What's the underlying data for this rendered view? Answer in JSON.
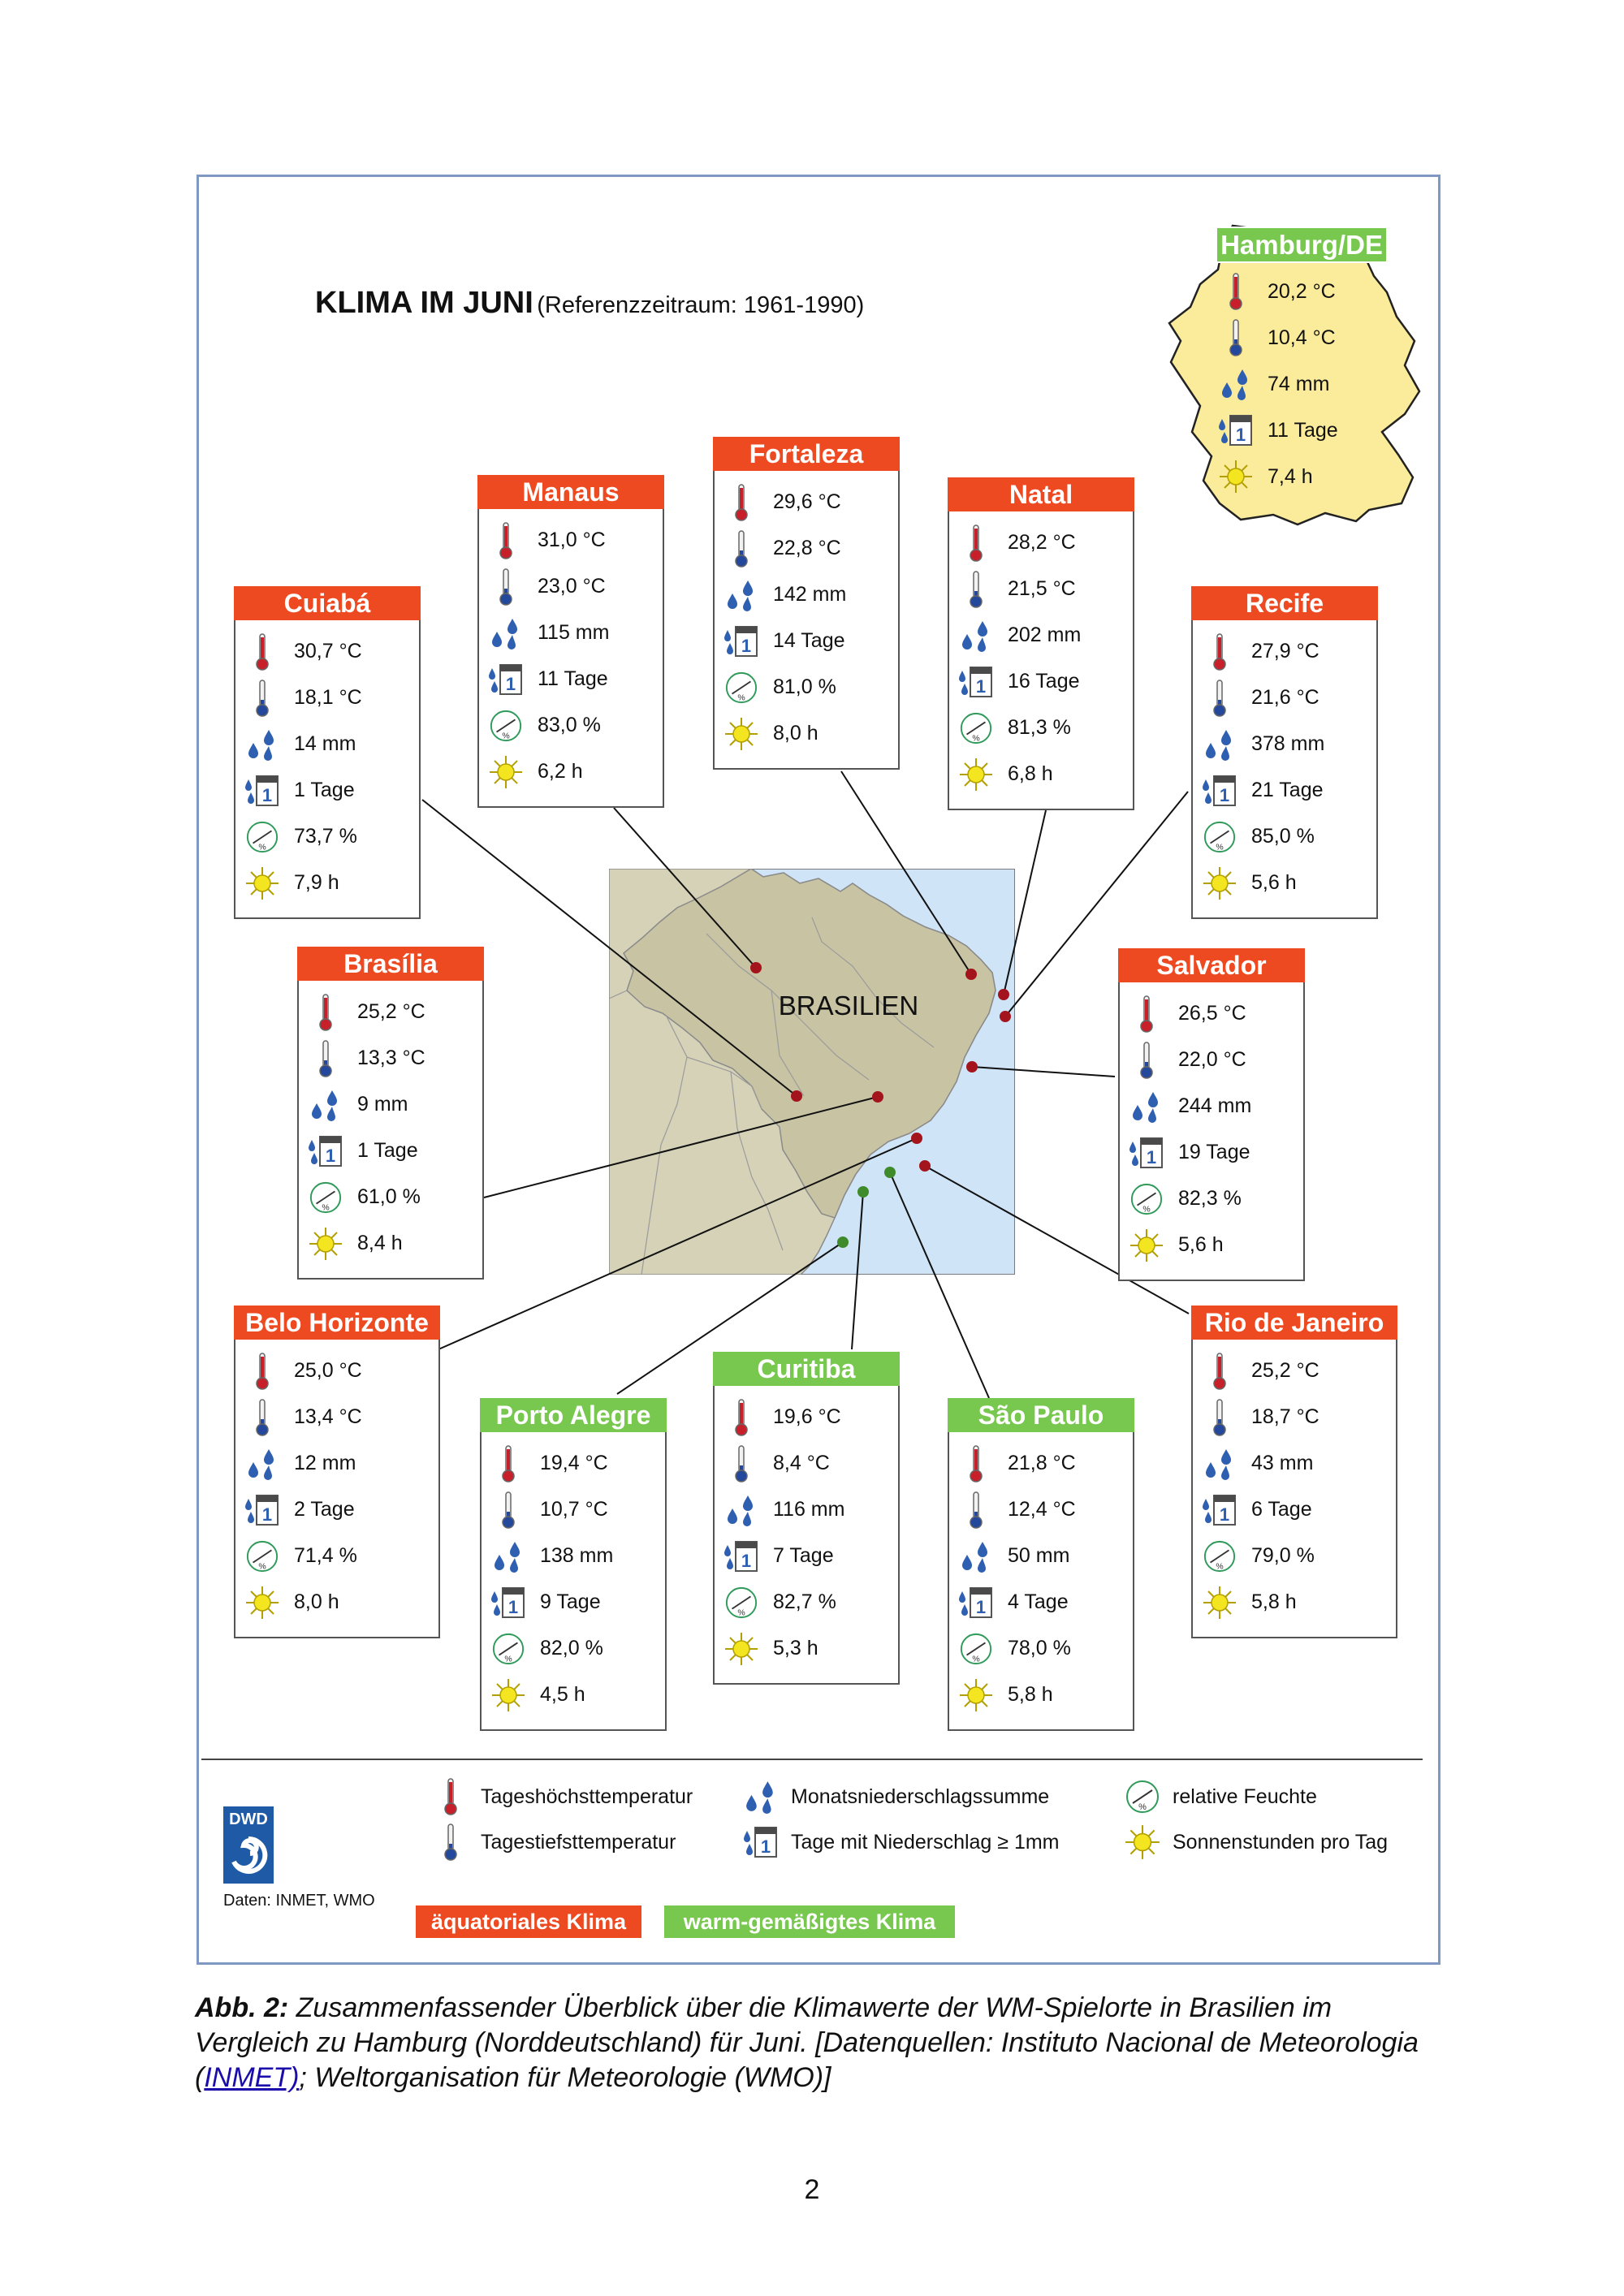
{
  "header": {
    "title": "KLIMA IM JUNI",
    "subtitle": "(Referenzzeitraum: 1961-1990)"
  },
  "colors": {
    "equatorial": "#ee4a22",
    "temperate": "#78c850",
    "germany_fill": "#fbec9b",
    "map_sea": "#cfe4f7",
    "map_land": "#d5d2b8",
    "station_red": "#a3141c",
    "station_green": "#3f8a2a"
  },
  "hamburg": {
    "title": "Hamburg/DE",
    "max_temp": "20,2 °C",
    "min_temp": "10,4 °C",
    "precip": "74 mm",
    "rain_days": "11 Tage",
    "sunshine": "7,4 h"
  },
  "cities": [
    {
      "name": "Manaus",
      "climate": "equatorial",
      "max_temp": "31,0 °C",
      "min_temp": "23,0 °C",
      "precip": "115 mm",
      "rain_days": "11 Tage",
      "humidity": "83,0 %",
      "sunshine": "6,2 h"
    },
    {
      "name": "Fortaleza",
      "climate": "equatorial",
      "max_temp": "29,6 °C",
      "min_temp": "22,8 °C",
      "precip": "142 mm",
      "rain_days": "14 Tage",
      "humidity": "81,0 %",
      "sunshine": "8,0 h"
    },
    {
      "name": "Natal",
      "climate": "equatorial",
      "max_temp": "28,2 °C",
      "min_temp": "21,5 °C",
      "precip": "202 mm",
      "rain_days": "16 Tage",
      "humidity": "81,3 %",
      "sunshine": "6,8 h"
    },
    {
      "name": "Cuiabá",
      "climate": "equatorial",
      "max_temp": "30,7 °C",
      "min_temp": "18,1 °C",
      "precip": "14 mm",
      "rain_days": "1 Tage",
      "humidity": "73,7 %",
      "sunshine": "7,9 h"
    },
    {
      "name": "Recife",
      "climate": "equatorial",
      "max_temp": "27,9 °C",
      "min_temp": "21,6 °C",
      "precip": "378 mm",
      "rain_days": "21 Tage",
      "humidity": "85,0 %",
      "sunshine": "5,6 h"
    },
    {
      "name": "Brasília",
      "climate": "equatorial",
      "max_temp": "25,2 °C",
      "min_temp": "13,3 °C",
      "precip": "9 mm",
      "rain_days": "1 Tage",
      "humidity": "61,0 %",
      "sunshine": "8,4 h"
    },
    {
      "name": "Salvador",
      "climate": "equatorial",
      "max_temp": "26,5 °C",
      "min_temp": "22,0 °C",
      "precip": "244 mm",
      "rain_days": "19 Tage",
      "humidity": "82,3 %",
      "sunshine": "5,6 h"
    },
    {
      "name": "Belo Horizonte",
      "climate": "equatorial",
      "max_temp": "25,0 °C",
      "min_temp": "13,4 °C",
      "precip": "12 mm",
      "rain_days": "2 Tage",
      "humidity": "71,4 %",
      "sunshine": "8,0 h"
    },
    {
      "name": "Porto Alegre",
      "climate": "temperate",
      "max_temp": "19,4 °C",
      "min_temp": "10,7 °C",
      "precip": "138 mm",
      "rain_days": "9 Tage",
      "humidity": "82,0 %",
      "sunshine": "4,5 h"
    },
    {
      "name": "Curitiba",
      "climate": "temperate",
      "max_temp": "19,6 °C",
      "min_temp": "8,4 °C",
      "precip": "116 mm",
      "rain_days": "7 Tage",
      "humidity": "82,7 %",
      "sunshine": "5,3 h"
    },
    {
      "name": "São Paulo",
      "climate": "temperate",
      "max_temp": "21,8 °C",
      "min_temp": "12,4 °C",
      "precip": "50 mm",
      "rain_days": "4 Tage",
      "humidity": "78,0 %",
      "sunshine": "5,8 h"
    },
    {
      "name": "Rio de Janeiro",
      "climate": "equatorial",
      "max_temp": "25,2 °C",
      "min_temp": "18,7 °C",
      "precip": "43 mm",
      "rain_days": "6 Tage",
      "humidity": "79,0 %",
      "sunshine": "5,8 h"
    }
  ],
  "map": {
    "label": "BRASILIEN"
  },
  "legend": {
    "max_temp": "Tageshöchsttemperatur",
    "min_temp": "Tagestiefsttemperatur",
    "precip": "Monatsniederschlagssumme",
    "rain_days": "Tage mit Niederschlag ≥ 1mm",
    "humidity": "relative Feuchte",
    "sunshine": "Sonnenstunden pro Tag",
    "logo_text": "DWD",
    "source": "Daten: INMET, WMO",
    "equatorial": "äquatoriales Klima",
    "temperate": "warm-gemäßigtes Klima"
  },
  "caption": {
    "lead": "Abb. 2:",
    "text1": " Zusammenfassender Überblick über die Klimawerte der WM-Spielorte in Brasilien im Vergleich zu Hamburg (Norddeutschland) für Juni. [Datenquellen: Instituto Nacional de Meteorologia (",
    "link": "INMET)",
    "text2": "; Weltorganisation für Meteorologie (WMO)]"
  },
  "page_number": "2"
}
